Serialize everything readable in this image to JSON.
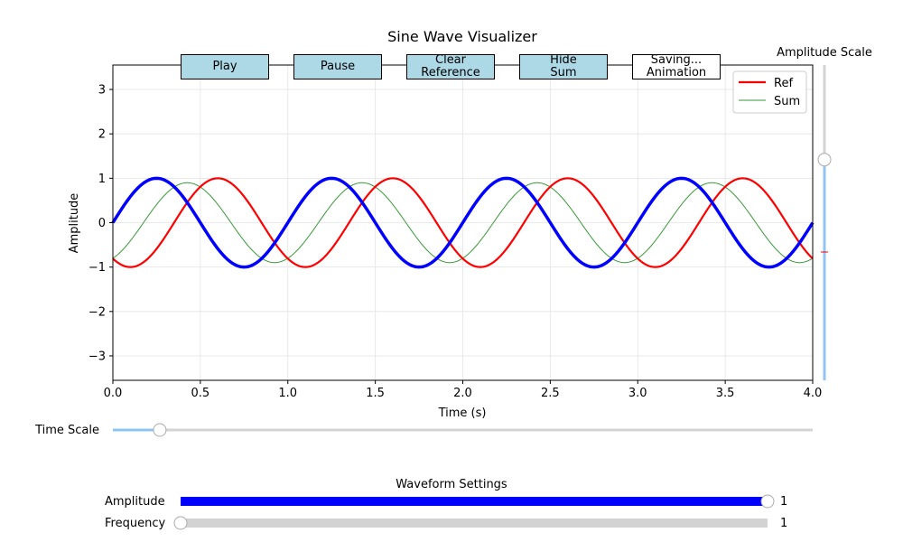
{
  "chart_data": {
    "type": "line",
    "title": "Sine Wave Visualizer",
    "xlabel": "Time (s)",
    "ylabel": "Amplitude",
    "xlim": [
      0,
      4
    ],
    "ylim": [
      -3.55,
      3.55
    ],
    "x_ticks": [
      0.0,
      0.5,
      1.0,
      1.5,
      2.0,
      2.5,
      3.0,
      3.5,
      4.0
    ],
    "x_tick_labels": [
      "0.0",
      "0.5",
      "1.0",
      "1.5",
      "2.0",
      "2.5",
      "3.0",
      "3.5",
      "4.0"
    ],
    "y_ticks": [
      -3,
      -2,
      -1,
      0,
      1,
      2,
      3
    ],
    "y_tick_labels": [
      "−3",
      "−2",
      "−1",
      "0",
      "1",
      "2",
      "3"
    ],
    "grid": true,
    "legend_position": "top-right",
    "series": [
      {
        "key": "main",
        "color": "#0000ff",
        "amplitude": 1.0,
        "frequency": 1.0,
        "phase_cycles": 0.0,
        "width": 3.5
      },
      {
        "key": "ref",
        "name": "Ref",
        "color": "#ff0000",
        "amplitude": 1.0,
        "frequency": 1.0,
        "phase_cycles": -0.35,
        "width": 2.2
      },
      {
        "key": "sum",
        "name": "Sum",
        "color": "#3a9a3a",
        "amplitude": 0.9,
        "frequency": 1.0,
        "phase_cycles": -0.175,
        "width": 1.0
      }
    ]
  },
  "buttons": [
    {
      "label": "Play",
      "style": "blue"
    },
    {
      "label": "Pause",
      "style": "blue"
    },
    {
      "label": "Clear\nReference",
      "style": "blue"
    },
    {
      "label": "Hide\nSum",
      "style": "blue"
    },
    {
      "label": "Saving...\nAnimation",
      "style": "white"
    }
  ],
  "amplitude_scale": {
    "label": "Amplitude Scale",
    "value": 0.7
  },
  "time_scale": {
    "label": "Time Scale",
    "value": 0.067
  },
  "waveform_settings": {
    "title": "Waveform Settings",
    "amplitude": {
      "label": "Amplitude",
      "value_text": "1",
      "fill_fraction": 1.0,
      "color": "#0000ff"
    },
    "frequency": {
      "label": "Frequency",
      "value_text": "1",
      "fill_fraction": 0.0,
      "color": "#0000ff"
    }
  },
  "colors": {
    "slider_track": "#d3d3d3",
    "slider_active": "#90c4f4",
    "button_bg": "#add8e6"
  }
}
